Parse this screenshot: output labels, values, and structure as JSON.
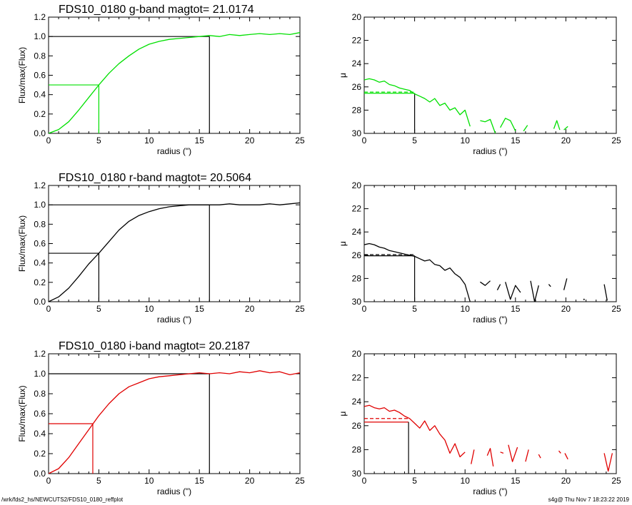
{
  "footer": {
    "left": "/wrk/fds2_hs/NEWCUTS2/FDS10_0180_reffplot",
    "right": "s4g@  Thu Nov  7 18:23:22 2019"
  },
  "colors": {
    "g": "#00e000",
    "r": "#000000",
    "i": "#e00000",
    "axis": "#000000"
  },
  "chart_data": [
    {
      "type": "line",
      "panel": "g-band-flux",
      "title": "FDS10_0180 g-band  magtot=     21.0174",
      "xlabel": "radius (\")",
      "ylabel": "Flux/max(Flux)",
      "xlim": [
        0,
        25
      ],
      "ylim": [
        0,
        1.2
      ],
      "xticks": [
        0,
        5,
        10,
        15,
        20,
        25
      ],
      "yticks": [
        "0.0",
        "0.2",
        "0.4",
        "0.6",
        "0.8",
        "1.0",
        "1.2"
      ],
      "color": "g",
      "series": [
        {
          "x": [
            0,
            1,
            2,
            3,
            4,
            5,
            6,
            7,
            8,
            9,
            10,
            11,
            12,
            13,
            14,
            15,
            16,
            17,
            18,
            19,
            20,
            21,
            22,
            23,
            24,
            25
          ],
          "y": [
            0.0,
            0.04,
            0.12,
            0.24,
            0.37,
            0.5,
            0.62,
            0.72,
            0.8,
            0.87,
            0.92,
            0.95,
            0.97,
            0.98,
            0.99,
            1.0,
            1.01,
            1.0,
            1.02,
            1.01,
            1.02,
            1.03,
            1.02,
            1.03,
            1.02,
            1.04
          ]
        }
      ],
      "ref_lines": {
        "y_half": 0.5,
        "r_half": 5.0,
        "y_total": 1.0,
        "r_total": 16.0
      }
    },
    {
      "type": "line",
      "panel": "g-band-mu",
      "xlabel": "radius (\")",
      "ylabel": "μ",
      "xlim": [
        0,
        25
      ],
      "ylim": [
        30,
        20
      ],
      "xticks": [
        0,
        5,
        10,
        15,
        20,
        25
      ],
      "yticks": [
        "20",
        "22",
        "24",
        "26",
        "28",
        "30"
      ],
      "color": "g",
      "series": [
        {
          "x": [
            0,
            0.5,
            1,
            1.5,
            2,
            2.5,
            3,
            3.5,
            4,
            4.5,
            5,
            5.5,
            6,
            6.5,
            7,
            7.5,
            8,
            8.5,
            9,
            9.5,
            10,
            10.5
          ],
          "y": [
            25.4,
            25.3,
            25.4,
            25.6,
            25.5,
            25.8,
            25.9,
            26.1,
            26.2,
            26.3,
            26.6,
            26.8,
            27.0,
            27.3,
            27.0,
            27.6,
            27.4,
            28.0,
            27.8,
            28.4,
            28.0,
            29.4
          ]
        },
        {
          "x": [
            11.5,
            12,
            12.5,
            13
          ],
          "y": [
            28.9,
            29.0,
            28.8,
            30.0
          ]
        },
        {
          "x": [
            13.5,
            14,
            14.5,
            15
          ],
          "y": [
            29.5,
            28.7,
            28.9,
            29.8
          ]
        },
        {
          "x": [
            15.8,
            16.2
          ],
          "y": [
            29.8,
            29.3
          ]
        },
        {
          "x": [
            18.8,
            19.1,
            19.4
          ],
          "y": [
            29.6,
            28.9,
            29.7
          ]
        },
        {
          "x": [
            19.8,
            20.2
          ],
          "y": [
            29.7,
            29.4
          ]
        }
      ],
      "ref_lines": {
        "mu_eff": 26.55,
        "mu_eff_dashed": 26.45,
        "r_half": 5.0
      }
    },
    {
      "type": "line",
      "panel": "r-band-flux",
      "title": "FDS10_0180 r-band  magtot=     20.5064",
      "xlabel": "radius (\")",
      "ylabel": "Flux/max(Flux)",
      "xlim": [
        0,
        25
      ],
      "ylim": [
        0,
        1.2
      ],
      "xticks": [
        0,
        5,
        10,
        15,
        20,
        25
      ],
      "yticks": [
        "0.0",
        "0.2",
        "0.4",
        "0.6",
        "0.8",
        "1.0",
        "1.2"
      ],
      "color": "r",
      "series": [
        {
          "x": [
            0,
            1,
            2,
            3,
            4,
            5,
            6,
            7,
            8,
            9,
            10,
            11,
            12,
            13,
            14,
            15,
            16,
            17,
            18,
            19,
            20,
            21,
            22,
            23,
            24,
            25
          ],
          "y": [
            0.0,
            0.05,
            0.14,
            0.26,
            0.39,
            0.5,
            0.62,
            0.74,
            0.83,
            0.89,
            0.93,
            0.96,
            0.98,
            0.99,
            1.0,
            1.0,
            1.0,
            1.0,
            1.01,
            1.0,
            1.0,
            1.0,
            1.01,
            1.0,
            1.01,
            1.02
          ]
        }
      ],
      "ref_lines": {
        "y_half": 0.5,
        "r_half": 5.0,
        "y_total": 1.0,
        "r_total": 16.0
      }
    },
    {
      "type": "line",
      "panel": "r-band-mu",
      "xlabel": "radius (\")",
      "ylabel": "μ",
      "xlim": [
        0,
        25
      ],
      "ylim": [
        30,
        20
      ],
      "xticks": [
        0,
        5,
        10,
        15,
        20,
        25
      ],
      "yticks": [
        "20",
        "22",
        "24",
        "26",
        "28",
        "30"
      ],
      "color": "r",
      "series": [
        {
          "x": [
            0,
            0.5,
            1,
            1.5,
            2,
            2.5,
            3,
            3.5,
            4,
            4.5,
            5,
            5.5,
            6,
            6.5,
            7,
            7.5,
            8,
            8.5,
            9,
            9.5,
            10,
            10.5
          ],
          "y": [
            25.1,
            25.0,
            25.1,
            25.3,
            25.4,
            25.6,
            25.7,
            25.8,
            25.9,
            26.0,
            26.1,
            26.3,
            26.5,
            26.4,
            26.8,
            26.9,
            27.3,
            27.1,
            27.6,
            27.9,
            28.5,
            30.0
          ]
        },
        {
          "x": [
            11.5,
            12,
            12.5
          ],
          "y": [
            28.3,
            28.6,
            28.2
          ]
        },
        {
          "x": [
            13.2,
            13.5
          ],
          "y": [
            29.0,
            28.5
          ]
        },
        {
          "x": [
            14,
            14.5,
            15,
            15.5
          ],
          "y": [
            28.3,
            29.8,
            28.6,
            29.2
          ]
        },
        {
          "x": [
            16.5,
            16.9,
            17.3
          ],
          "y": [
            28.2,
            30.0,
            28.6
          ]
        },
        {
          "x": [
            18.3,
            18.5
          ],
          "y": [
            28.5,
            28.7
          ]
        },
        {
          "x": [
            19.8,
            20.1
          ],
          "y": [
            29.0,
            28.0
          ]
        },
        {
          "x": [
            21.8
          ],
          "y": [
            29.8
          ]
        },
        {
          "x": [
            23.8,
            24.1
          ],
          "y": [
            28.5,
            29.9
          ]
        }
      ],
      "ref_lines": {
        "mu_eff": 26.05,
        "mu_eff_dashed": 25.95,
        "r_half": 5.0
      }
    },
    {
      "type": "line",
      "panel": "i-band-flux",
      "title": "FDS10_0180 i-band  magtot=     20.2187",
      "xlabel": "radius (\")",
      "ylabel": "Flux/max(Flux)",
      "xlim": [
        0,
        25
      ],
      "ylim": [
        0,
        1.2
      ],
      "xticks": [
        0,
        5,
        10,
        15,
        20,
        25
      ],
      "yticks": [
        "0.0",
        "0.2",
        "0.4",
        "0.6",
        "0.8",
        "1.0",
        "1.2"
      ],
      "color": "i",
      "series": [
        {
          "x": [
            0,
            1,
            2,
            3,
            4,
            5,
            6,
            7,
            8,
            9,
            10,
            11,
            12,
            13,
            14,
            15,
            16,
            17,
            18,
            19,
            20,
            21,
            22,
            23,
            24,
            25
          ],
          "y": [
            0.0,
            0.05,
            0.16,
            0.3,
            0.44,
            0.58,
            0.7,
            0.8,
            0.87,
            0.91,
            0.95,
            0.97,
            0.98,
            0.99,
            1.0,
            1.01,
            1.0,
            1.01,
            1.0,
            1.02,
            1.01,
            1.03,
            1.01,
            1.02,
            0.99,
            1.01
          ]
        }
      ],
      "ref_lines": {
        "y_half": 0.5,
        "r_half": 4.4,
        "y_total": 1.0,
        "r_total": 16.0
      }
    },
    {
      "type": "line",
      "panel": "i-band-mu",
      "xlabel": "radius (\")",
      "ylabel": "μ",
      "xlim": [
        0,
        25
      ],
      "ylim": [
        30,
        20
      ],
      "xticks": [
        0,
        5,
        10,
        15,
        20,
        25
      ],
      "yticks": [
        "20",
        "22",
        "24",
        "26",
        "28",
        "30"
      ],
      "color": "i",
      "series": [
        {
          "x": [
            0,
            0.5,
            1,
            1.5,
            2,
            2.5,
            3,
            3.5,
            4,
            4.5,
            5,
            5.5,
            6,
            6.5,
            7,
            7.5,
            8,
            8.5,
            9,
            9.5,
            10
          ],
          "y": [
            24.4,
            24.3,
            24.5,
            24.6,
            24.5,
            24.8,
            24.7,
            24.9,
            25.2,
            25.4,
            25.8,
            26.2,
            25.6,
            26.4,
            26.0,
            26.7,
            27.2,
            28.3,
            27.5,
            28.6,
            28.2
          ]
        },
        {
          "x": [
            10.6,
            10.9
          ],
          "y": [
            29.2,
            28.0
          ]
        },
        {
          "x": [
            12.2,
            12.5,
            12.8
          ],
          "y": [
            28.5,
            27.9,
            29.4
          ]
        },
        {
          "x": [
            13.5,
            13.8
          ],
          "y": [
            28.2,
            28.3
          ]
        },
        {
          "x": [
            14.3,
            14.7,
            15.2
          ],
          "y": [
            27.6,
            29.0,
            27.8
          ]
        },
        {
          "x": [
            16.0,
            16.3
          ],
          "y": [
            29.0,
            28.0
          ]
        },
        {
          "x": [
            17.3,
            17.5
          ],
          "y": [
            28.4,
            28.7
          ]
        },
        {
          "x": [
            19.3,
            19.5
          ],
          "y": [
            28.1,
            28.3
          ]
        },
        {
          "x": [
            19.9,
            20.2
          ],
          "y": [
            28.3,
            28.8
          ]
        },
        {
          "x": [
            23.8,
            24.2,
            24.6
          ],
          "y": [
            28.3,
            29.8,
            28.3
          ]
        }
      ],
      "ref_lines": {
        "mu_eff": 25.7,
        "mu_eff_dashed": 25.4,
        "r_half": 4.4
      }
    }
  ]
}
